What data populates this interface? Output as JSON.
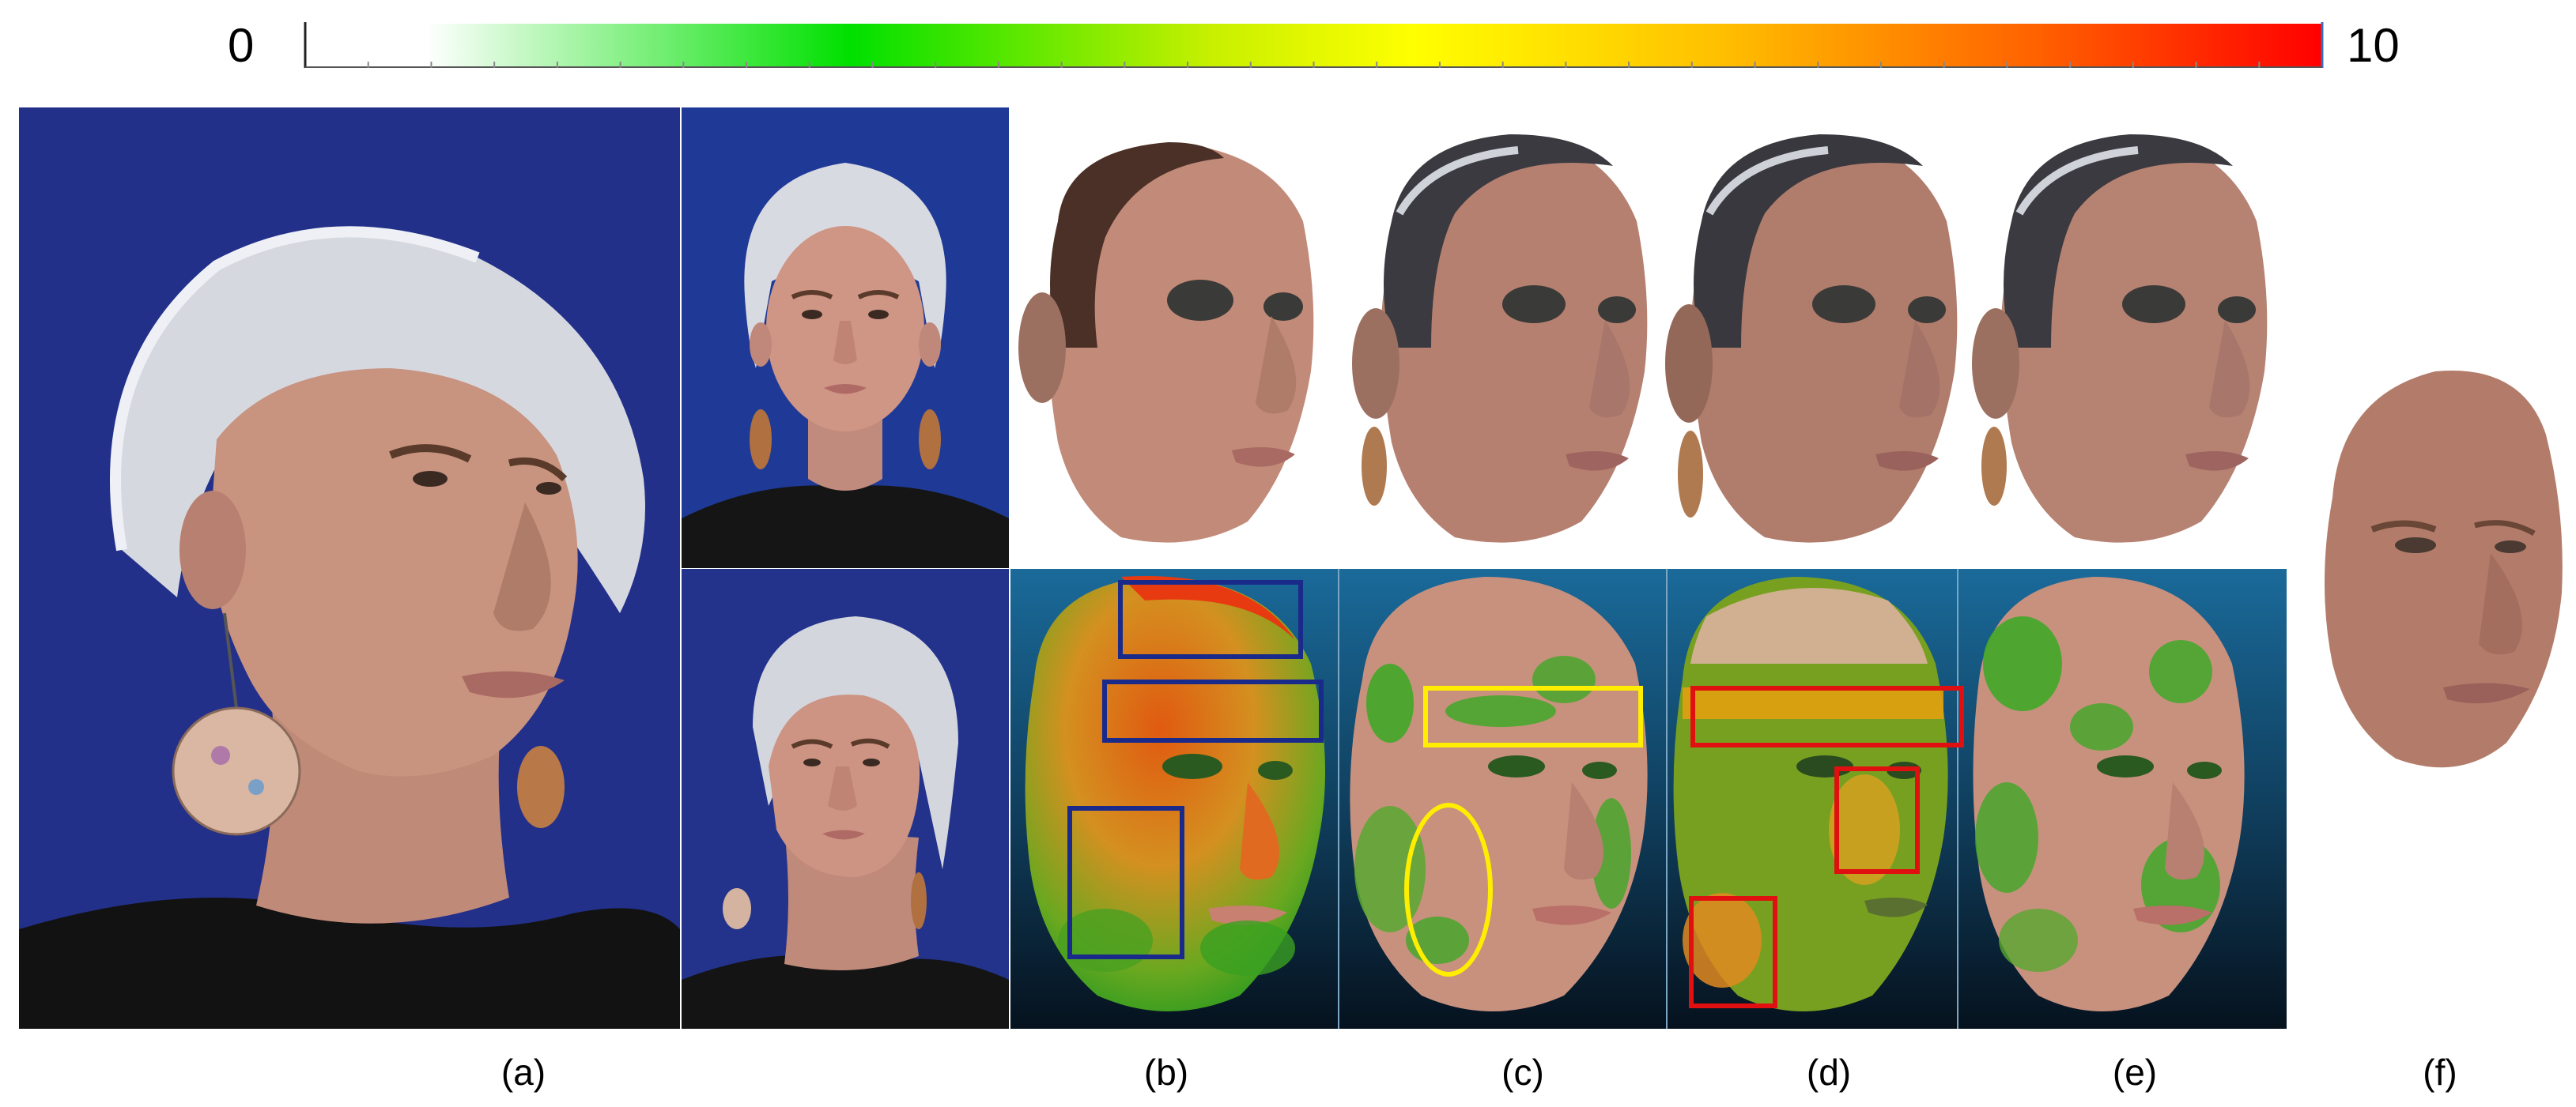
{
  "colorbar": {
    "min_label": "0",
    "max_label": "10",
    "tick_count": 32,
    "stops": [
      "#ffffff",
      "#00e000",
      "#ffff00",
      "#ffa000",
      "#ff0000"
    ]
  },
  "panels": {
    "a": {
      "caption": "(a)",
      "content": "input photographs (one large oblique view, frontal view, low oblique view)"
    },
    "b": {
      "caption": "(b)",
      "content": "reconstructed face mesh and error heatmap"
    },
    "c": {
      "caption": "(c)",
      "content": "reconstructed face mesh and error heatmap"
    },
    "d": {
      "caption": "(d)",
      "content": "reconstructed face mesh and error heatmap"
    },
    "e": {
      "caption": "(e)",
      "content": "reconstructed face mesh and error heatmap"
    },
    "f": {
      "caption": "(f)",
      "content": "ground-truth face scan"
    }
  },
  "highlight_colors": {
    "b": "#1a2a8a",
    "c": "#ffee00",
    "d": "#e01010"
  },
  "colors": {
    "photo_background": "#22308a",
    "heatmap_background_top": "#1a6a9a",
    "heatmap_background_bottom": "#06121e",
    "skin": "#b88a78"
  }
}
